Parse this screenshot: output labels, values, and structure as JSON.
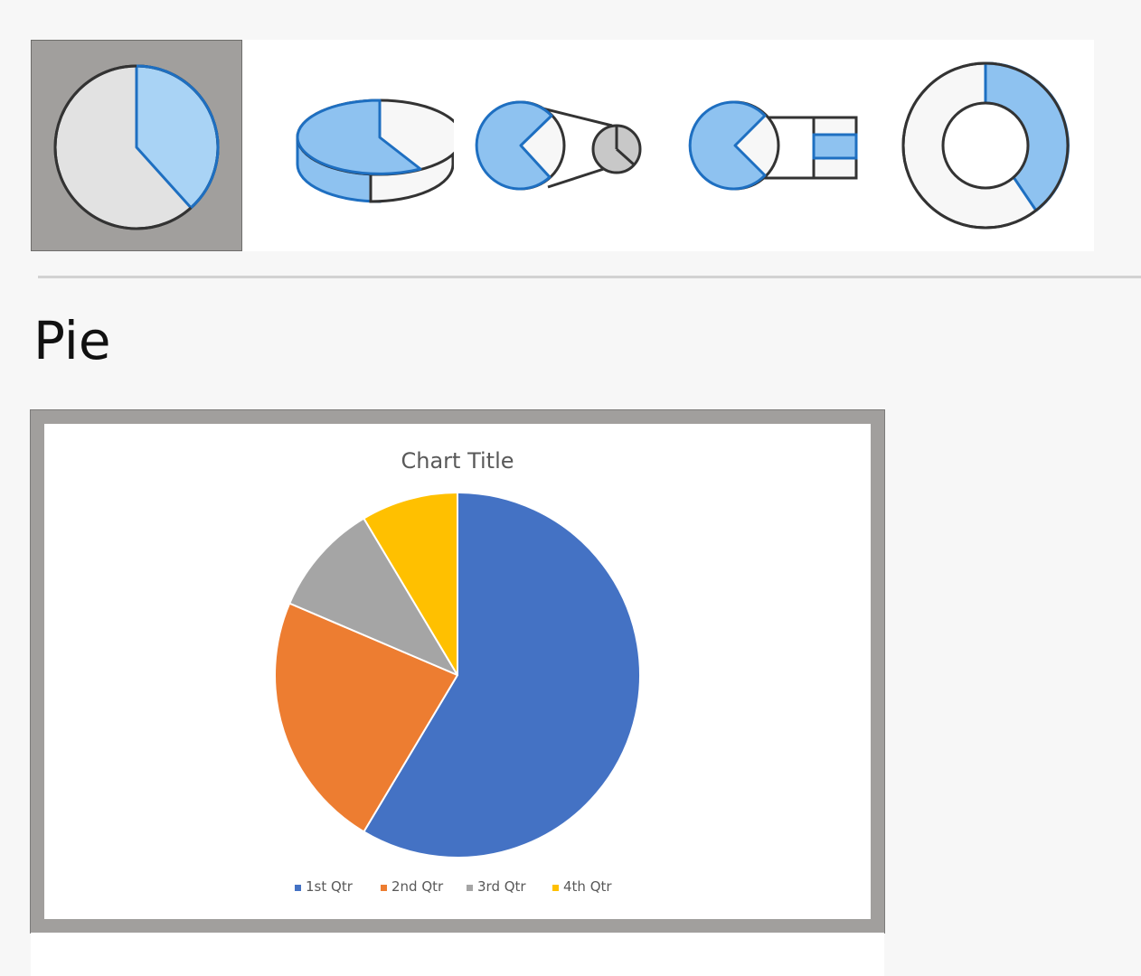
{
  "gallery": {
    "subtypes": [
      {
        "icon": "pie-icon",
        "selected": true
      },
      {
        "icon": "3d-pie-icon",
        "selected": false
      },
      {
        "icon": "pie-of-pie-icon",
        "selected": false
      },
      {
        "icon": "bar-of-pie-icon",
        "selected": false
      },
      {
        "icon": "doughnut-icon",
        "selected": false
      }
    ]
  },
  "section": {
    "title": "Pie"
  },
  "chart_data": {
    "type": "pie",
    "title": "Chart Title",
    "categories": [
      "1st Qtr",
      "2nd Qtr",
      "3rd Qtr",
      "4th Qtr"
    ],
    "values": [
      8.2,
      3.2,
      1.4,
      1.2
    ],
    "colors": [
      "#4472c4",
      "#ed7d31",
      "#a5a5a5",
      "#ffc000"
    ],
    "legend_position": "bottom",
    "start_angle_deg": 0,
    "direction": "clockwise"
  }
}
